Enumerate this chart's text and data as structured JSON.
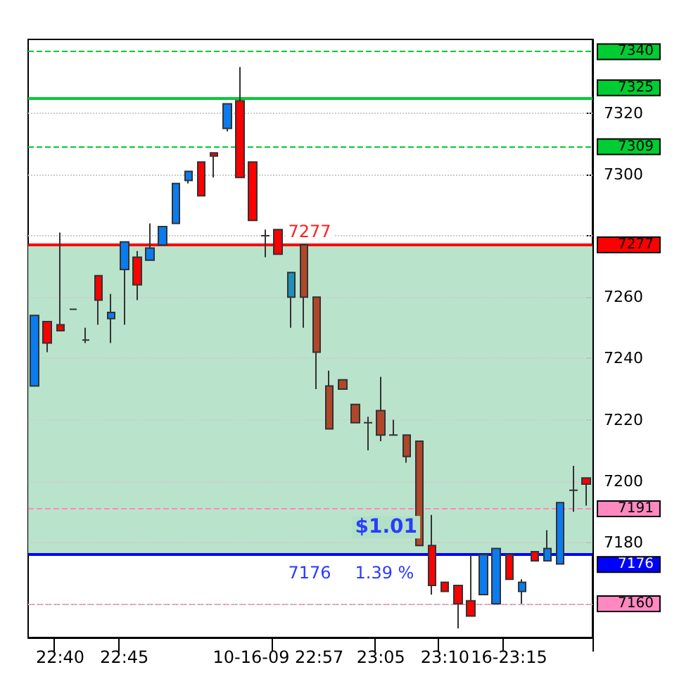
{
  "chart_data": {
    "type": "candlestick",
    "categories": [
      null,
      null,
      "22:40",
      null,
      null,
      null,
      null,
      "22:45",
      null,
      null,
      null,
      null,
      null,
      null,
      null,
      null,
      null,
      null,
      null,
      "10-16-09 22:57",
      null,
      null,
      null,
      null,
      null,
      null,
      null,
      "23:05",
      null,
      null,
      null,
      null,
      "23:10",
      null,
      null,
      null,
      null,
      "16-23:15",
      null,
      null,
      null,
      null,
      null,
      null
    ],
    "ohlc": [
      [
        7231,
        7254,
        7231,
        7254
      ],
      [
        7252,
        7252,
        7242,
        7245
      ],
      [
        7251,
        7281,
        7249,
        7249
      ],
      [
        7256,
        7256,
        7256,
        7256
      ],
      [
        7246,
        7250,
        7245,
        7246
      ],
      [
        7267,
        7267,
        7251,
        7259
      ],
      [
        7253,
        7261,
        7245,
        7255
      ],
      [
        7269,
        7278,
        7251,
        7278
      ],
      [
        7273,
        7275,
        7259,
        7264
      ],
      [
        7272,
        7284,
        7272,
        7276
      ],
      [
        7277,
        7283,
        7277,
        7283
      ],
      [
        7284,
        7297,
        7284,
        7297
      ],
      [
        7298,
        7301,
        7297,
        7301
      ],
      [
        7304,
        7304,
        7293,
        7293
      ],
      [
        7307,
        7307,
        7299,
        7306
      ],
      [
        7315,
        7323,
        7314,
        7323
      ],
      [
        7324,
        7335,
        7299,
        7299
      ],
      [
        7304,
        7304,
        7285,
        7285
      ],
      [
        7280,
        7282,
        7273,
        7280
      ],
      [
        7282,
        7282,
        7274,
        7274
      ],
      [
        7260,
        7268,
        7250,
        7268
      ],
      [
        7277,
        7277,
        7250,
        7260
      ],
      [
        7260,
        7260,
        7230,
        7242
      ],
      [
        7231,
        7236,
        7217,
        7217
      ],
      [
        7233,
        7233,
        7230,
        7230
      ],
      [
        7225,
        7225,
        7219,
        7219
      ],
      [
        7219,
        7221,
        7210,
        7219
      ],
      [
        7223,
        7234,
        7213,
        7215
      ],
      [
        7215,
        7220,
        7215,
        7215
      ],
      [
        7215,
        7215,
        7206,
        7208
      ],
      [
        7213,
        7213,
        7179,
        7179
      ],
      [
        7179,
        7189,
        7163,
        7166
      ],
      [
        7167,
        7167,
        7164,
        7164
      ],
      [
        7166,
        7166,
        7152,
        7160
      ],
      [
        7161,
        7176,
        7156,
        7156
      ],
      [
        7163,
        7176,
        7163,
        7176
      ],
      [
        7160,
        7178,
        7160,
        7178
      ],
      [
        7176,
        7176,
        7168,
        7168
      ],
      [
        7164,
        7168,
        7160,
        7167
      ],
      [
        7177,
        7177,
        7174,
        7174
      ],
      [
        7174,
        7184,
        7174,
        7178
      ],
      [
        7173,
        7193,
        7173,
        7193
      ],
      [
        7197,
        7205,
        7190,
        7197
      ],
      [
        7201,
        7201,
        7192,
        7199
      ]
    ],
    "colors": [
      "#0a7cf0",
      "#ff0000",
      "#ff0000",
      "#333333",
      "#333333",
      "#ff0000",
      "#0a7cf0",
      "#0a7cf0",
      "#ff0000",
      "#0a7cf0",
      "#0a7cf0",
      "#0a7cf0",
      "#0a7cf0",
      "#ff0000",
      "#ff0000",
      "#0a7cf0",
      "#ff0000",
      "#ff0000",
      "#333333",
      "#ff0000",
      "#1f8fb8",
      "#b0472a",
      "#b0472a",
      "#b0472a",
      "#b0472a",
      "#b0472a",
      "#333333",
      "#b0472a",
      "#333333",
      "#b0472a",
      "#b0472a",
      "#ff0000",
      "#ff0000",
      "#ff0000",
      "#ff0000",
      "#0a7cf0",
      "#0a7cf0",
      "#ff0000",
      "#0a7cf0",
      "#ff0000",
      "#0a7cf0",
      "#0a7cf0",
      "#333333",
      "#ff0000"
    ],
    "ylim": [
      7149,
      7344
    ],
    "yticks": [
      {
        "value": 7160,
        "label": null
      },
      7180,
      7200,
      7220,
      7240,
      7260,
      {
        "value": 7280,
        "label": null
      },
      7300,
      7320
    ],
    "grid": true,
    "ref_lines": [
      {
        "axis": "y",
        "value": 7340,
        "label": "7340",
        "color": "#00cc33",
        "line_style": "dashed"
      },
      {
        "axis": "y",
        "value": 7325,
        "label": "7325",
        "color": "#00cc33",
        "line_style": "solid"
      },
      {
        "axis": "y",
        "value": 7309,
        "label": "7309",
        "color": "#00cc33",
        "line_style": "dashed"
      },
      {
        "axis": "y",
        "value": 7277,
        "label": "7277",
        "color": "#ff0000",
        "line_style": "solid"
      },
      {
        "axis": "y",
        "value": 7191,
        "label": "7191",
        "color": "#ff88c0",
        "line_style": "dashed"
      },
      {
        "axis": "y",
        "value": 7176,
        "label": "7176",
        "color": "#0000ff",
        "line_style": "solid"
      },
      {
        "axis": "y",
        "value": 7160,
        "label": "7160",
        "color": "#ff88c0",
        "line_style": "dashed"
      }
    ],
    "bands": [
      {
        "axis": "y",
        "from": 7176,
        "to": 7277,
        "color": "#b2e0c6"
      }
    ],
    "annotations": [
      "7277",
      "7176",
      "$1.01",
      "1.39 %"
    ]
  }
}
